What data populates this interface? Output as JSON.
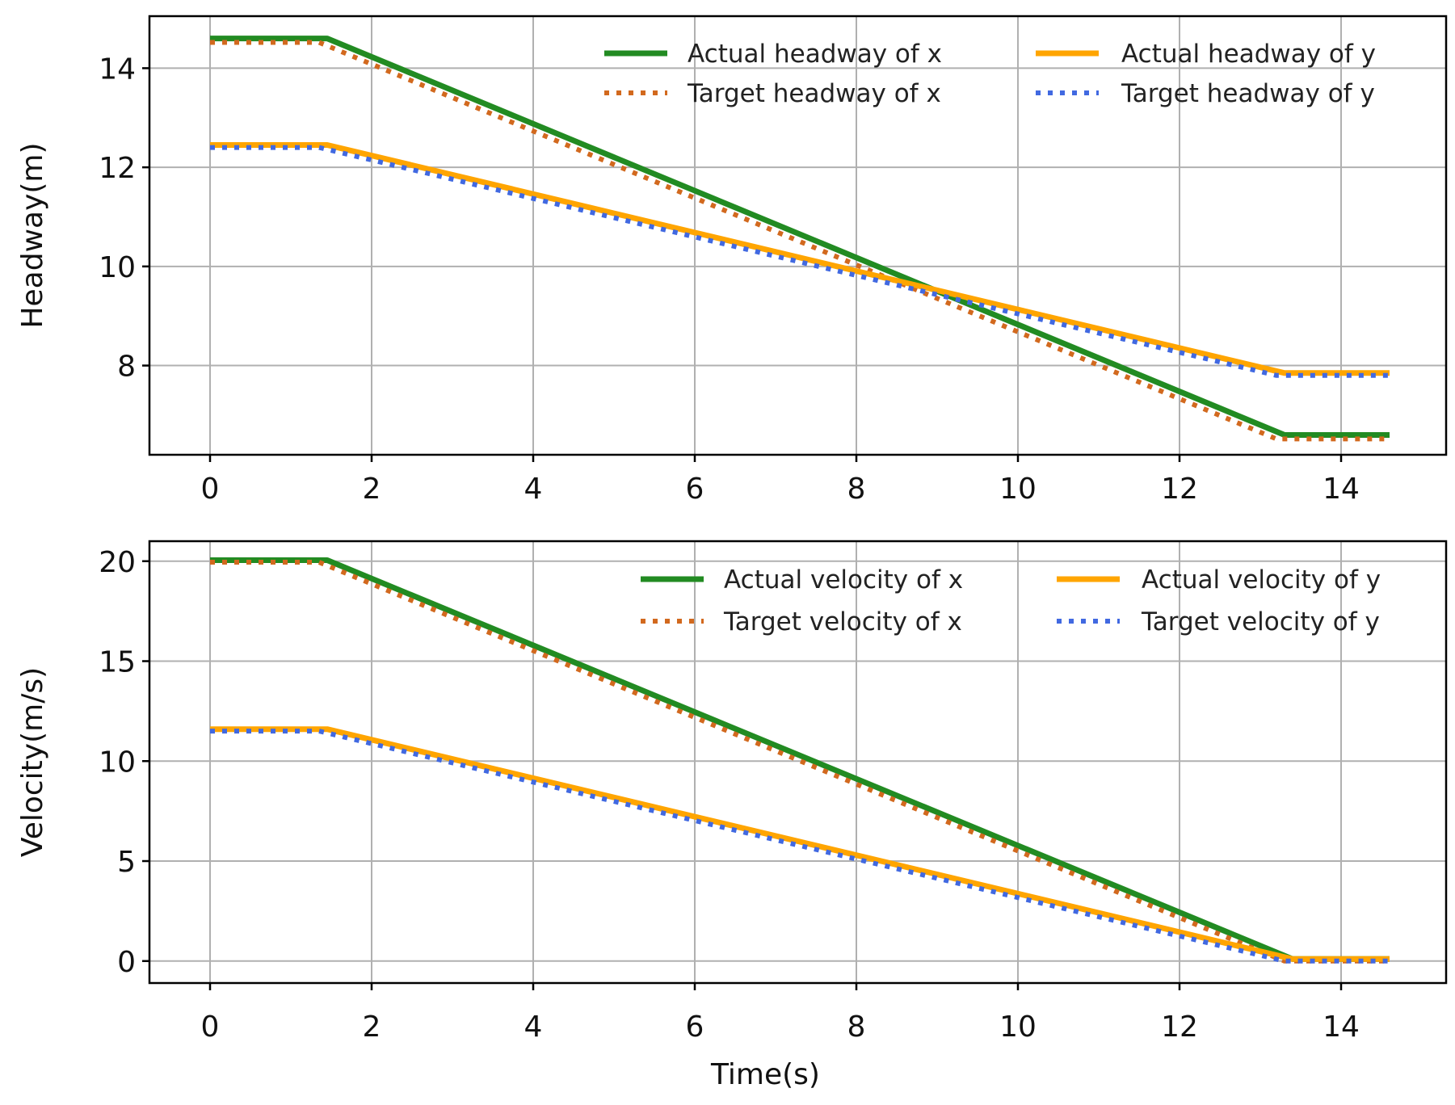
{
  "chart_data": [
    {
      "type": "line",
      "title": "",
      "xlabel": "",
      "ylabel": "Headway(m)",
      "xlim": [
        -0.75,
        15.3
      ],
      "ylim": [
        6.2,
        15.05
      ],
      "xticks": [
        0,
        2,
        4,
        6,
        8,
        10,
        12,
        14
      ],
      "yticks": [
        8,
        10,
        12,
        14
      ],
      "xtick_labels": [
        "0",
        "2",
        "4",
        "6",
        "8",
        "10",
        "12",
        "14"
      ],
      "ytick_labels": [
        "8",
        "10",
        "12",
        "14"
      ],
      "grid": true,
      "legend": {
        "position": "upper-right",
        "columns": 2
      },
      "series": [
        {
          "name": "Actual headway of x",
          "style": "solid",
          "color": "#228B22",
          "x": [
            0,
            1.45,
            13.3,
            14.6
          ],
          "y": [
            14.6,
            14.6,
            6.6,
            6.6
          ]
        },
        {
          "name": "Target headway of x",
          "style": "dotted",
          "color": "#d2691e",
          "x": [
            0,
            1.35,
            13.2,
            14.6
          ],
          "y": [
            14.52,
            14.52,
            6.52,
            6.52
          ]
        },
        {
          "name": "Actual headway of y",
          "style": "solid",
          "color": "#ffa500",
          "x": [
            0,
            1.45,
            13.3,
            14.6
          ],
          "y": [
            12.45,
            12.45,
            7.85,
            7.85
          ]
        },
        {
          "name": "Target headway of y",
          "style": "dotted",
          "color": "#4169e1",
          "x": [
            0,
            1.35,
            13.2,
            14.6
          ],
          "y": [
            12.4,
            12.4,
            7.8,
            7.8
          ]
        }
      ]
    },
    {
      "type": "line",
      "title": "",
      "xlabel": "Time(s)",
      "ylabel": "Velocity(m/s)",
      "xlim": [
        -0.75,
        15.3
      ],
      "ylim": [
        -1.1,
        21.0
      ],
      "xticks": [
        0,
        2,
        4,
        6,
        8,
        10,
        12,
        14
      ],
      "yticks": [
        0,
        5,
        10,
        15,
        20
      ],
      "xtick_labels": [
        "0",
        "2",
        "4",
        "6",
        "8",
        "10",
        "12",
        "14"
      ],
      "ytick_labels": [
        "0",
        "5",
        "10",
        "15",
        "20"
      ],
      "grid": true,
      "legend": {
        "position": "upper-right",
        "columns": 2
      },
      "series": [
        {
          "name": "Actual velocity of x",
          "style": "solid",
          "color": "#228B22",
          "x": [
            0,
            1.45,
            13.4,
            14.6
          ],
          "y": [
            20.05,
            20.05,
            0.1,
            0.1
          ]
        },
        {
          "name": "Target velocity of x",
          "style": "dotted",
          "color": "#d2691e",
          "x": [
            0,
            1.35,
            13.3,
            14.6
          ],
          "y": [
            19.95,
            19.95,
            0.0,
            0.0
          ]
        },
        {
          "name": "Actual velocity of y",
          "style": "solid",
          "color": "#ffa500",
          "x": [
            0,
            1.45,
            13.4,
            14.6
          ],
          "y": [
            11.6,
            11.6,
            0.1,
            0.1
          ]
        },
        {
          "name": "Target velocity of y",
          "style": "dotted",
          "color": "#4169e1",
          "x": [
            0,
            1.35,
            13.3,
            14.6
          ],
          "y": [
            11.5,
            11.5,
            0.0,
            0.0
          ]
        }
      ]
    }
  ]
}
